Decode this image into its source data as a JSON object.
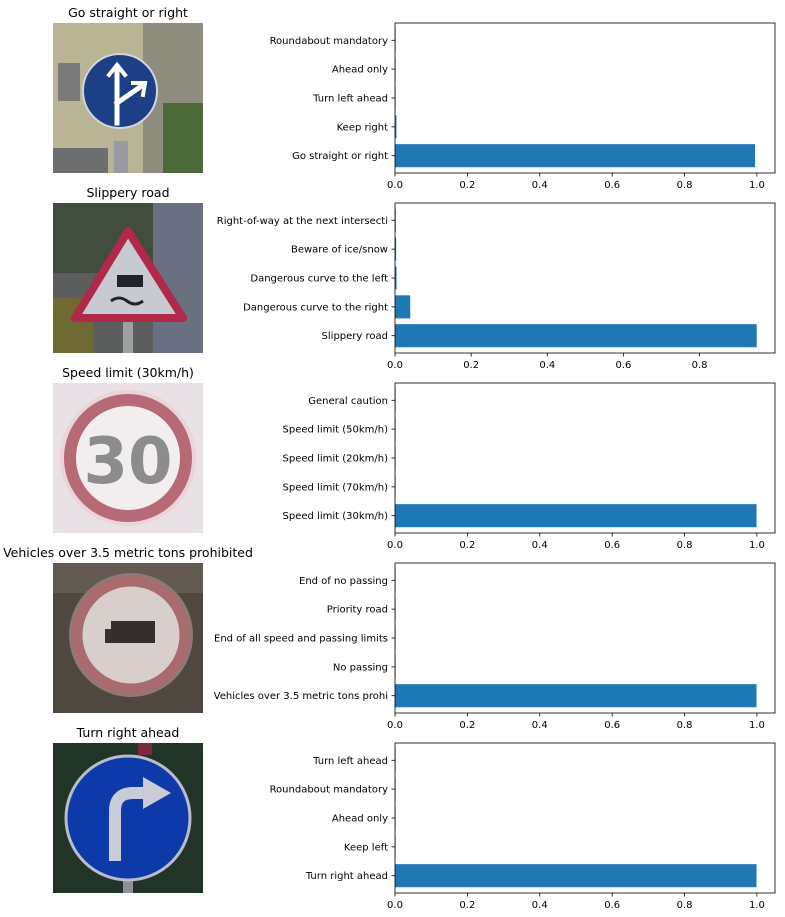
{
  "colors": {
    "bar": "#1f77b4",
    "axis": "#000000",
    "background": "#ffffff"
  },
  "panels": [
    {
      "title": "Go straight or right",
      "sign": {
        "shape": "blue-circle",
        "symbol": "straight-right-arrow-icon",
        "background": "building-wall"
      },
      "chart_data": {
        "type": "bar",
        "orientation": "horizontal",
        "categories": [
          "Go straight or right",
          "Keep right",
          "Turn left ahead",
          "Ahead only",
          "Roundabout mandatory"
        ],
        "values": [
          0.995,
          0.004,
          0.0005,
          0.0003,
          0.0002
        ],
        "xlim": [
          0,
          1.05
        ],
        "ticks": [
          0,
          0.2,
          0.4,
          0.6,
          0.8,
          1.0
        ],
        "tick_labels": [
          "0.0",
          "0.2",
          "0.4",
          "0.6",
          "0.8",
          "1.0"
        ]
      }
    },
    {
      "title": "Slippery road",
      "sign": {
        "shape": "red-triangle",
        "symbol": "slippery-car-icon",
        "background": "trees"
      },
      "chart_data": {
        "type": "bar",
        "orientation": "horizontal",
        "categories": [
          "Slippery road",
          "Dangerous curve to the right",
          "Dangerous curve to the left",
          "Beware of ice/snow",
          "Right-of-way at the next intersecti"
        ],
        "values": [
          0.95,
          0.04,
          0.004,
          0.003,
          0.002
        ],
        "xlim": [
          0,
          0.998
        ],
        "ticks": [
          0,
          0.2,
          0.4,
          0.6,
          0.8
        ],
        "tick_labels": [
          "0.0",
          "0.2",
          "0.4",
          "0.6",
          "0.8"
        ]
      }
    },
    {
      "title": "Speed limit (30km/h)",
      "sign": {
        "shape": "red-ring",
        "symbol": "number-30-icon",
        "number": "30",
        "background": "pale-sky"
      },
      "chart_data": {
        "type": "bar",
        "orientation": "horizontal",
        "categories": [
          "Speed limit (30km/h)",
          "Speed limit (70km/h)",
          "Speed limit (20km/h)",
          "Speed limit (50km/h)",
          "General caution"
        ],
        "values": [
          0.999,
          0.0005,
          0.0003,
          0.0002,
          0.0001
        ],
        "xlim": [
          0,
          1.05
        ],
        "ticks": [
          0,
          0.2,
          0.4,
          0.6,
          0.8,
          1.0
        ],
        "tick_labels": [
          "0.0",
          "0.2",
          "0.4",
          "0.6",
          "0.8",
          "1.0"
        ]
      }
    },
    {
      "title": "Vehicles over 3.5 metric tons prohibited",
      "sign": {
        "shape": "red-ring",
        "symbol": "truck-icon",
        "background": "dark-wall"
      },
      "chart_data": {
        "type": "bar",
        "orientation": "horizontal",
        "categories": [
          "Vehicles over 3.5 metric tons prohi",
          "No passing",
          "End of all speed and passing limits",
          "Priority road",
          "End of no passing"
        ],
        "values": [
          0.999,
          0.0005,
          0.0003,
          0.0002,
          0.0001
        ],
        "xlim": [
          0,
          1.05
        ],
        "ticks": [
          0,
          0.2,
          0.4,
          0.6,
          0.8,
          1.0
        ],
        "tick_labels": [
          "0.0",
          "0.2",
          "0.4",
          "0.6",
          "0.8",
          "1.0"
        ]
      }
    },
    {
      "title": "Turn right ahead",
      "sign": {
        "shape": "blue-circle",
        "symbol": "turn-right-arrow-icon",
        "background": "dark-trees"
      },
      "chart_data": {
        "type": "bar",
        "orientation": "horizontal",
        "categories": [
          "Turn right ahead",
          "Keep left",
          "Ahead only",
          "Roundabout mandatory",
          "Turn left ahead"
        ],
        "values": [
          0.999,
          0.0005,
          0.0003,
          0.0002,
          0.0001
        ],
        "xlim": [
          0,
          1.05
        ],
        "ticks": [
          0,
          0.2,
          0.4,
          0.6,
          0.8,
          1.0
        ],
        "tick_labels": [
          "0.0",
          "0.2",
          "0.4",
          "0.6",
          "0.8",
          "1.0"
        ]
      }
    }
  ]
}
